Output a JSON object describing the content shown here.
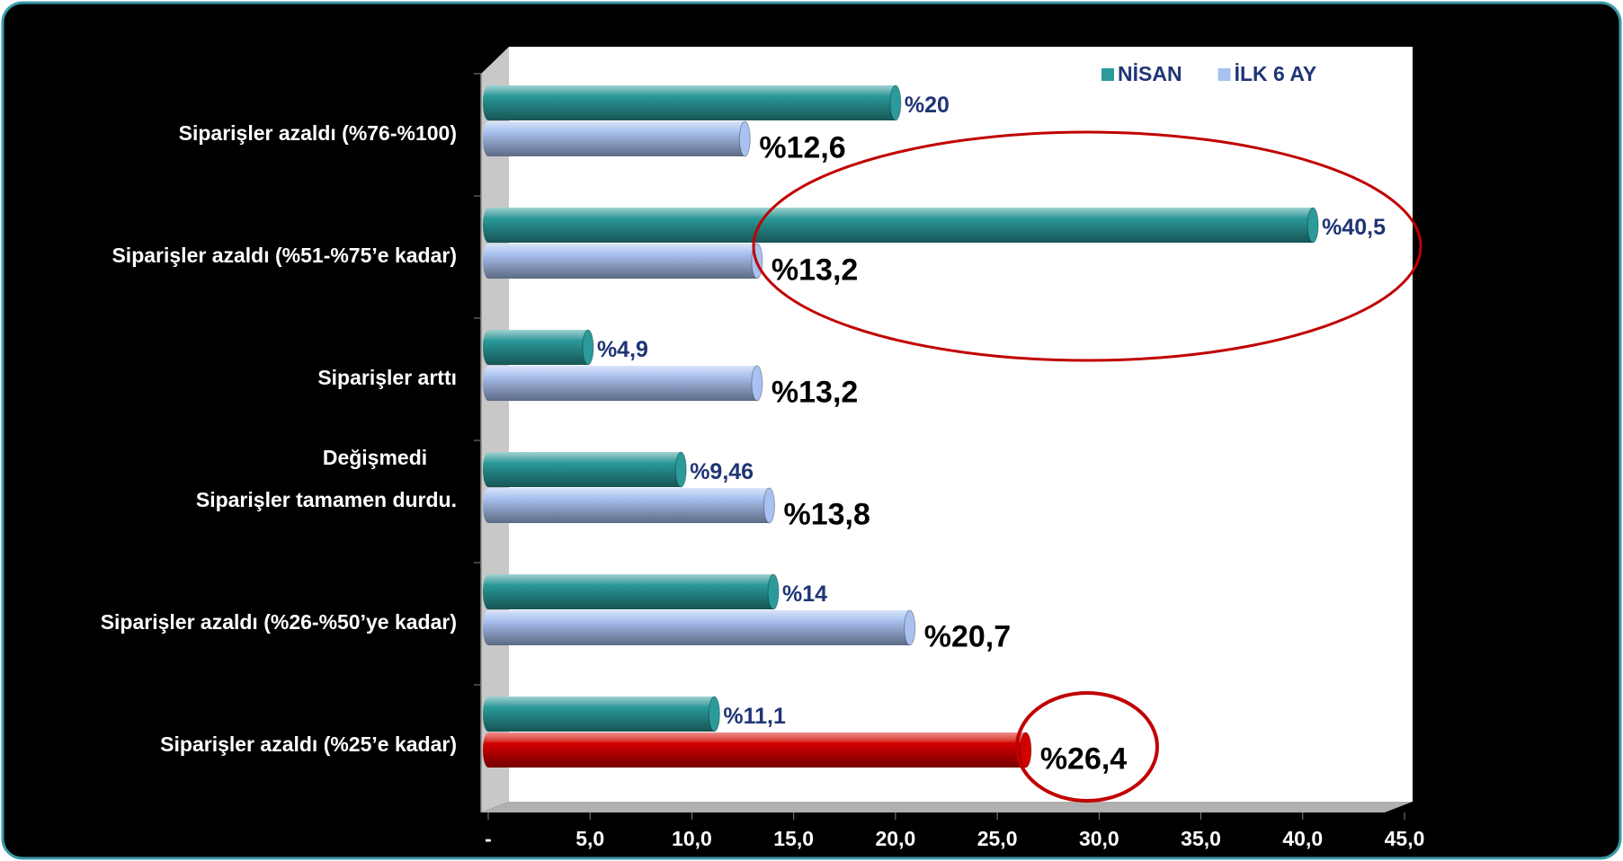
{
  "chart_data": {
    "type": "bar",
    "orientation": "horizontal",
    "categories": [
      "Siparişler azaldı (%76-%100)",
      "Siparişler azaldı (%51-%75’e kadar)",
      "Siparişler arttı",
      "Siparişler tamamen durdu.",
      "Siparişler azaldı (%26-%50’ye kadar)",
      "Siparişler azaldı (%25’e kadar)"
    ],
    "annotations": [
      "Değişmedi"
    ],
    "series": [
      {
        "name": "NİSAN",
        "color": "#2a9a9a",
        "values": [
          20,
          40.5,
          4.9,
          9.46,
          14,
          11.1
        ],
        "value_labels": [
          "%20",
          "%40,5",
          "%4,9",
          "%9,46",
          "%14",
          "%11,1"
        ]
      },
      {
        "name": "İLK 6 AY",
        "color": "#a9c1f0",
        "colors": [
          "#a9c1f0",
          "#a9c1f0",
          "#a9c1f0",
          "#a9c1f0",
          "#a9c1f0",
          "#d40000"
        ],
        "values": [
          12.6,
          13.2,
          13.2,
          13.8,
          20.7,
          26.4
        ],
        "value_labels": [
          "%12,6",
          "%13,2",
          "%13,2",
          "%13,8",
          "%20,7",
          "%26,4"
        ]
      }
    ],
    "xlim": [
      0,
      45
    ],
    "xticks": [
      {
        "value": 0,
        "label": "-"
      },
      {
        "value": 5,
        "label": "5,0"
      },
      {
        "value": 10,
        "label": "10,0"
      },
      {
        "value": 15,
        "label": "15,0"
      },
      {
        "value": 20,
        "label": "20,0"
      },
      {
        "value": 25,
        "label": "25,0"
      },
      {
        "value": 30,
        "label": "30,0"
      },
      {
        "value": 35,
        "label": "35,0"
      },
      {
        "value": 40,
        "label": "40,0"
      },
      {
        "value": 45,
        "label": "45,0"
      }
    ],
    "legend": "top-right"
  }
}
